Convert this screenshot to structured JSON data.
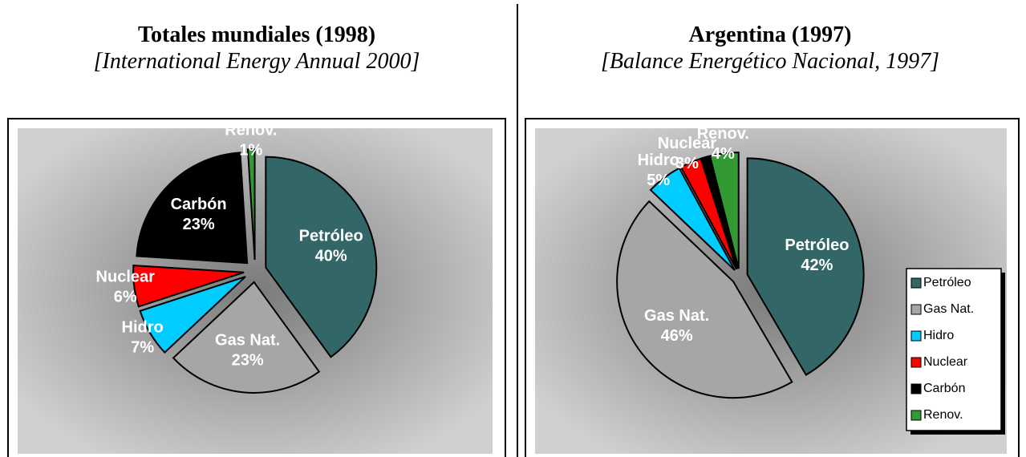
{
  "chart_data": [
    {
      "type": "pie",
      "title": "Totales mundiales (1998)",
      "subtitle": "[International Energy Annual 2000]",
      "categories": [
        "Petróleo",
        "Gas Nat.",
        "Hidro",
        "Nuclear",
        "Carbón",
        "Renov."
      ],
      "values": [
        40,
        23,
        7,
        6,
        23,
        1
      ],
      "value_labels": [
        "40%",
        "23%",
        "7%",
        "6%",
        "23%",
        "1%"
      ],
      "colors": [
        "#336666",
        "#a6a6a6",
        "#00ccff",
        "#ff0000",
        "#000000",
        "#339933"
      ],
      "legend": false
    },
    {
      "type": "pie",
      "title": "Argentina (1997)",
      "subtitle": "[Balance Energético Nacional, 1997]",
      "categories": [
        "Petróleo",
        "Gas Nat.",
        "Hidro",
        "Nuclear",
        "Carbón",
        "Renov."
      ],
      "values": [
        42,
        46,
        5,
        3,
        1,
        4
      ],
      "value_labels": [
        "42%",
        "46%",
        "5%",
        "3%",
        null,
        "4%"
      ],
      "colors": [
        "#336666",
        "#a6a6a6",
        "#00ccff",
        "#ff0000",
        "#000000",
        "#339933"
      ],
      "legend": "right"
    }
  ]
}
